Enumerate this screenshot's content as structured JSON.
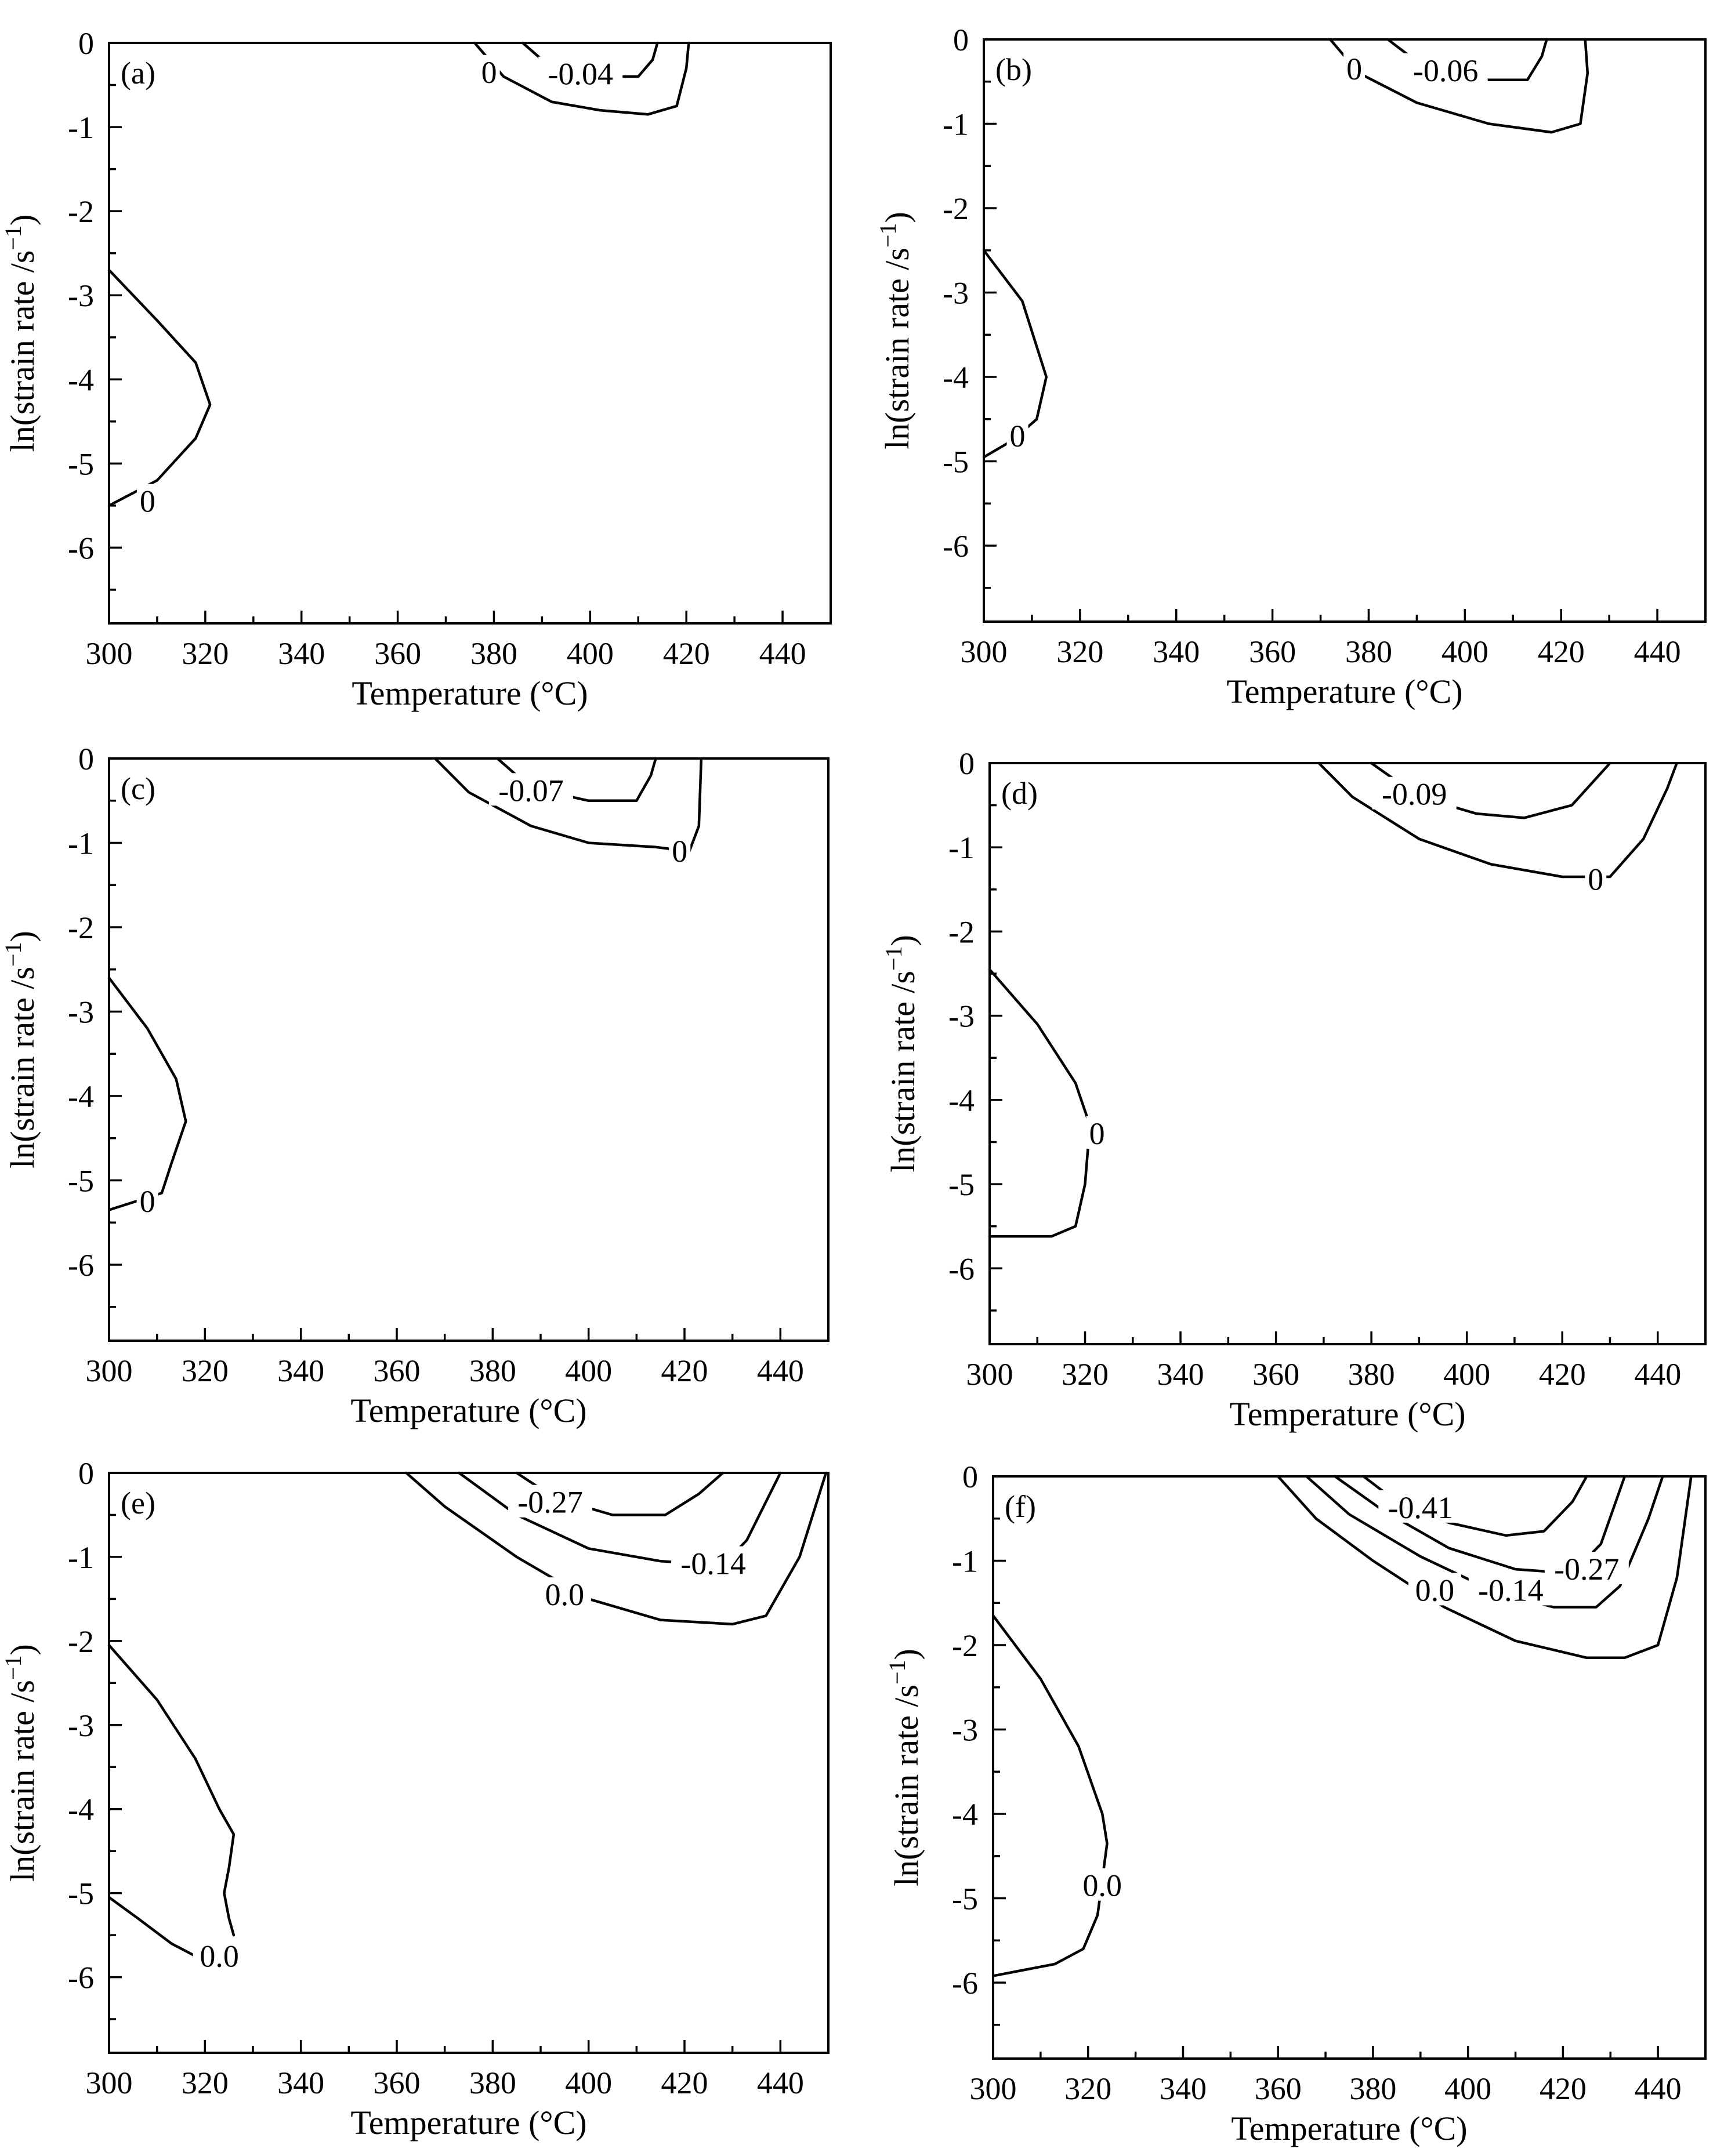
{
  "chart_data": [
    {
      "type": "contour",
      "panel": "(a)",
      "xlabel": "Temperature (°C)",
      "ylabel": "ln(strain rate /s",
      "ylabel_sup": "−1",
      "ylabel_tail": ")",
      "xlim": [
        300,
        450
      ],
      "ylim": [
        -6.9,
        0
      ],
      "xticks": [
        300,
        320,
        340,
        360,
        380,
        400,
        420,
        440
      ],
      "yticks": [
        0,
        -1,
        -2,
        -3,
        -4,
        -5,
        -6
      ],
      "contours": [
        {
          "level": "0",
          "points": [
            [
              300,
              -2.7
            ],
            [
              310,
              -3.3
            ],
            [
              318,
              -3.8
            ],
            [
              321,
              -4.3
            ],
            [
              318,
              -4.7
            ],
            [
              310,
              -5.2
            ],
            [
              300,
              -5.5
            ]
          ],
          "label": {
            "text": "0",
            "x": 308,
            "y": -5.45
          }
        },
        {
          "level": "0",
          "points": [
            [
              376,
              0
            ],
            [
              382,
              -0.4
            ],
            [
              392,
              -0.7
            ],
            [
              402,
              -0.8
            ],
            [
              412,
              -0.85
            ],
            [
              418,
              -0.75
            ],
            [
              420,
              -0.3
            ],
            [
              420.5,
              0
            ]
          ],
          "label": {
            "text": "0",
            "x": 379,
            "y": -0.35
          }
        },
        {
          "level": "-0.04",
          "points": [
            [
              386,
              0
            ],
            [
              392,
              -0.3
            ],
            [
              402,
              -0.4
            ],
            [
              410,
              -0.4
            ],
            [
              413,
              -0.2
            ],
            [
              414,
              0
            ]
          ],
          "label": {
            "text": "-0.04",
            "x": 398,
            "y": -0.37
          }
        }
      ]
    },
    {
      "type": "contour",
      "panel": "(b)",
      "xlabel": "Temperature (°C)",
      "ylabel": "ln(strain rate /s",
      "ylabel_sup": "−1",
      "ylabel_tail": ")",
      "xlim": [
        300,
        450
      ],
      "ylim": [
        -6.9,
        0
      ],
      "xticks": [
        300,
        320,
        340,
        360,
        380,
        400,
        420,
        440
      ],
      "yticks": [
        0,
        -1,
        -2,
        -3,
        -4,
        -5,
        -6
      ],
      "contours": [
        {
          "level": "0",
          "points": [
            [
              300,
              -2.5
            ],
            [
              308,
              -3.1
            ],
            [
              313,
              -4.0
            ],
            [
              311,
              -4.5
            ],
            [
              306,
              -4.75
            ],
            [
              300,
              -4.95
            ]
          ],
          "label": {
            "text": "0",
            "x": 307,
            "y": -4.7
          }
        },
        {
          "level": "0",
          "points": [
            [
              372,
              0
            ],
            [
              378,
              -0.4
            ],
            [
              390,
              -0.75
            ],
            [
              405,
              -1.0
            ],
            [
              418,
              -1.1
            ],
            [
              424,
              -1.0
            ],
            [
              425.5,
              -0.4
            ],
            [
              425,
              0
            ]
          ],
          "label": {
            "text": "0",
            "x": 377,
            "y": -0.35
          }
        },
        {
          "level": "-0.06",
          "points": [
            [
              384,
              0
            ],
            [
              392,
              -0.35
            ],
            [
              405,
              -0.48
            ],
            [
              413,
              -0.48
            ],
            [
              416,
              -0.2
            ],
            [
              417,
              0
            ]
          ],
          "label": {
            "text": "-0.06",
            "x": 396,
            "y": -0.37
          }
        }
      ]
    },
    {
      "type": "contour",
      "panel": "(c)",
      "xlabel": "Temperature (°C)",
      "ylabel": "ln(strain rate /s",
      "ylabel_sup": "−1",
      "ylabel_tail": ")",
      "xlim": [
        300,
        450
      ],
      "ylim": [
        -6.9,
        0
      ],
      "xticks": [
        300,
        320,
        340,
        360,
        380,
        400,
        420,
        440
      ],
      "yticks": [
        0,
        -1,
        -2,
        -3,
        -4,
        -5,
        -6
      ],
      "contours": [
        {
          "level": "0",
          "points": [
            [
              300,
              -2.6
            ],
            [
              308,
              -3.2
            ],
            [
              314,
              -3.8
            ],
            [
              316,
              -4.3
            ],
            [
              313,
              -4.8
            ],
            [
              311,
              -5.15
            ],
            [
              300,
              -5.35
            ]
          ],
          "label": {
            "text": "0",
            "x": 308,
            "y": -5.25
          }
        },
        {
          "level": "0",
          "points": [
            [
              368,
              0
            ],
            [
              375,
              -0.4
            ],
            [
              388,
              -0.8
            ],
            [
              400,
              -1.0
            ],
            [
              414,
              -1.05
            ],
            [
              421,
              -1.1
            ],
            [
              423,
              -0.8
            ],
            [
              423.5,
              0
            ]
          ],
          "label": {
            "text": "0",
            "x": 419,
            "y": -1.1
          }
        },
        {
          "level": "-0.07",
          "points": [
            [
              381,
              0
            ],
            [
              388,
              -0.35
            ],
            [
              400,
              -0.5
            ],
            [
              410,
              -0.5
            ],
            [
              413,
              -0.2
            ],
            [
              414,
              0
            ]
          ],
          "label": {
            "text": "-0.07",
            "x": 388,
            "y": -0.38
          }
        }
      ]
    },
    {
      "type": "contour",
      "panel": "(d)",
      "xlabel": "Temperature (°C)",
      "ylabel": "ln(strain rate /s",
      "ylabel_sup": "−1",
      "ylabel_tail": ")",
      "xlim": [
        300,
        450
      ],
      "ylim": [
        -6.9,
        0
      ],
      "xticks": [
        300,
        320,
        340,
        360,
        380,
        400,
        420,
        440
      ],
      "yticks": [
        0,
        -1,
        -2,
        -3,
        -4,
        -5,
        -6
      ],
      "contours": [
        {
          "level": "0",
          "points": [
            [
              300,
              -2.45
            ],
            [
              310,
              -3.1
            ],
            [
              318,
              -3.8
            ],
            [
              321,
              -4.3
            ],
            [
              320,
              -5.0
            ],
            [
              318,
              -5.5
            ],
            [
              313,
              -5.62
            ],
            [
              300,
              -5.62
            ]
          ],
          "label": {
            "text": "0",
            "x": 322.5,
            "y": -4.4
          }
        },
        {
          "level": "0",
          "points": [
            [
              369,
              0
            ],
            [
              376,
              -0.4
            ],
            [
              390,
              -0.9
            ],
            [
              405,
              -1.2
            ],
            [
              420,
              -1.35
            ],
            [
              430,
              -1.35
            ],
            [
              437,
              -0.9
            ],
            [
              442,
              -0.3
            ],
            [
              444,
              0
            ]
          ],
          "label": {
            "text": "0",
            "x": 427,
            "y": -1.38
          }
        },
        {
          "level": "-0.09",
          "points": [
            [
              380,
              0
            ],
            [
              390,
              -0.4
            ],
            [
              402,
              -0.6
            ],
            [
              412,
              -0.65
            ],
            [
              422,
              -0.5
            ],
            [
              430,
              0
            ]
          ],
          "label": {
            "text": "-0.09",
            "x": 389,
            "y": -0.37
          }
        }
      ]
    },
    {
      "type": "contour",
      "panel": "(e)",
      "xlabel": "Temperature (°C)",
      "ylabel": "ln(strain rate /s",
      "ylabel_sup": "−1",
      "ylabel_tail": ")",
      "xlim": [
        300,
        450
      ],
      "ylim": [
        -6.9,
        0
      ],
      "xticks": [
        300,
        320,
        340,
        360,
        380,
        400,
        420,
        440
      ],
      "yticks": [
        0,
        -1,
        -2,
        -3,
        -4,
        -5,
        -6
      ],
      "contours": [
        {
          "level": "0.0",
          "points": [
            [
              300,
              -2.05
            ],
            [
              310,
              -2.7
            ],
            [
              318,
              -3.4
            ],
            [
              323,
              -4.0
            ],
            [
              326,
              -4.3
            ],
            [
              325,
              -4.7
            ],
            [
              324,
              -5.0
            ],
            [
              325,
              -5.3
            ],
            [
              326,
              -5.5
            ]
          ],
          "label": null
        },
        {
          "level": "0.0",
          "points": [
            [
              300,
              -5.05
            ],
            [
              306,
              -5.3
            ],
            [
              313,
              -5.6
            ],
            [
              318,
              -5.75
            ]
          ],
          "label": {
            "text": "0.0",
            "x": 323,
            "y": -5.75
          }
        },
        {
          "level": "0.0",
          "points": [
            [
              362,
              0
            ],
            [
              370,
              -0.4
            ],
            [
              385,
              -1.0
            ],
            [
              400,
              -1.5
            ],
            [
              415,
              -1.75
            ],
            [
              430,
              -1.8
            ],
            [
              437,
              -1.7
            ],
            [
              444,
              -1.0
            ],
            [
              449.5,
              0
            ]
          ],
          "label": {
            "text": "0.0",
            "x": 395,
            "y": -1.45
          }
        },
        {
          "level": "-0.14",
          "points": [
            [
              373,
              0
            ],
            [
              385,
              -0.5
            ],
            [
              400,
              -0.9
            ],
            [
              415,
              -1.05
            ],
            [
              428,
              -1.1
            ],
            [
              433,
              -0.8
            ],
            [
              440,
              0
            ]
          ],
          "label": {
            "text": "-0.14",
            "x": 426,
            "y": -1.08
          }
        },
        {
          "level": "-0.27",
          "points": [
            [
              385,
              0
            ],
            [
              393,
              -0.3
            ],
            [
              405,
              -0.5
            ],
            [
              416,
              -0.5
            ],
            [
              423,
              -0.25
            ],
            [
              428,
              0
            ]
          ],
          "label": {
            "text": "-0.27",
            "x": 392,
            "y": -0.35
          }
        }
      ]
    },
    {
      "type": "contour",
      "panel": "(f)",
      "xlabel": "Temperature (°C)",
      "ylabel": "ln(strain rate /s",
      "ylabel_sup": "−1",
      "ylabel_tail": ")",
      "xlim": [
        300,
        450
      ],
      "ylim": [
        -6.9,
        0
      ],
      "xticks": [
        300,
        320,
        340,
        360,
        380,
        400,
        420,
        440
      ],
      "yticks": [
        0,
        -1,
        -2,
        -3,
        -4,
        -5,
        -6
      ],
      "contours": [
        {
          "level": "0.0",
          "points": [
            [
              300,
              -1.65
            ],
            [
              310,
              -2.4
            ],
            [
              318,
              -3.2
            ],
            [
              323,
              -4.0
            ],
            [
              324,
              -4.35
            ],
            [
              322,
              -5.2
            ],
            [
              319,
              -5.6
            ],
            [
              313,
              -5.78
            ],
            [
              300,
              -5.92
            ]
          ],
          "label": {
            "text": "0.0",
            "x": 323,
            "y": -4.85
          }
        },
        {
          "level": "0.0",
          "points": [
            [
              360,
              0
            ],
            [
              368,
              -0.5
            ],
            [
              380,
              -1.0
            ],
            [
              395,
              -1.55
            ],
            [
              410,
              -1.95
            ],
            [
              425,
              -2.15
            ],
            [
              433,
              -2.15
            ],
            [
              440,
              -2.0
            ],
            [
              444,
              -1.2
            ],
            [
              447,
              0
            ]
          ],
          "label": {
            "text": "0.0",
            "x": 393,
            "y": -1.35
          }
        },
        {
          "level": "-0.14",
          "points": [
            [
              366,
              0
            ],
            [
              375,
              -0.45
            ],
            [
              390,
              -0.95
            ],
            [
              405,
              -1.35
            ],
            [
              418,
              -1.55
            ],
            [
              427,
              -1.55
            ],
            [
              432,
              -1.3
            ],
            [
              438,
              -0.5
            ],
            [
              441,
              0
            ]
          ],
          "label": {
            "text": "-0.14",
            "x": 409,
            "y": -1.35
          }
        },
        {
          "level": "-0.27",
          "points": [
            [
              372,
              0
            ],
            [
              382,
              -0.4
            ],
            [
              396,
              -0.85
            ],
            [
              410,
              -1.1
            ],
            [
              422,
              -1.15
            ],
            [
              428,
              -0.8
            ],
            [
              433,
              0
            ]
          ],
          "label": {
            "text": "-0.27",
            "x": 425,
            "y": -1.1
          }
        },
        {
          "level": "-0.41",
          "points": [
            [
              378,
              0
            ],
            [
              385,
              -0.3
            ],
            [
              396,
              -0.55
            ],
            [
              408,
              -0.7
            ],
            [
              416,
              -0.65
            ],
            [
              422,
              -0.3
            ],
            [
              425,
              0
            ]
          ],
          "label": {
            "text": "-0.41",
            "x": 390,
            "y": -0.37
          }
        }
      ]
    }
  ]
}
